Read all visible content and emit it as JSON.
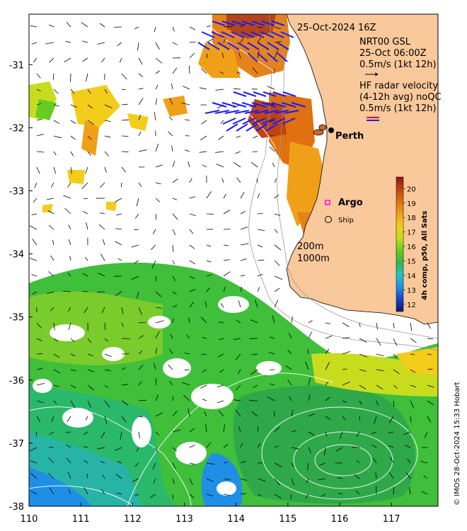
{
  "map": {
    "timestamp": "25-Oct-2024 16Z",
    "gsl": {
      "line1": "NRT00 GSL",
      "line2": "25-Oct 06:00Z",
      "line3": "0.5m/s (1kt 12h)"
    },
    "hf_radar": {
      "line1": "HF radar velocity",
      "line2": "(4-12h avg) noQC",
      "line3": "0.5m/s (1kt 12h)"
    },
    "places": {
      "perth": "Perth",
      "argo": "Argo",
      "ship": "Ship"
    },
    "isobaths": {
      "shallow": "200m",
      "deep": "1000m"
    },
    "credit": "© IMOS 28-Oct-2024 15:33 Hobart",
    "colors": {
      "land": "#f9c89b",
      "coast": "#000000",
      "argo_marker": "#ff00ff",
      "hf_arrow_blue": "#1a1aff",
      "hf_arrow_red": "#ff0000",
      "gsl_arrow": "#000000"
    }
  },
  "axes": {
    "lon_range": [
      110,
      117.9
    ],
    "lat_range": [
      -38,
      -30.2
    ],
    "x_ticks": [
      "110",
      "111",
      "112",
      "113",
      "114",
      "115",
      "116",
      "117"
    ],
    "y_ticks": [
      "-31",
      "-32",
      "-33",
      "-34",
      "-35",
      "-36",
      "-37",
      "-38"
    ]
  },
  "colorbar": {
    "title": "4h comp, p50, All Sats",
    "ticks": [
      "20",
      "19",
      "18",
      "17",
      "16",
      "15",
      "14",
      "13",
      "12"
    ],
    "range": [
      11.5,
      20.8
    ],
    "stops": [
      "#0a1a6e",
      "#1a3fcf",
      "#1f8fe6",
      "#22c3c8",
      "#2fb84a",
      "#66cc22",
      "#c8dc1e",
      "#f2cd1a",
      "#f0a018",
      "#e07010",
      "#c04410",
      "#8b1a0a"
    ]
  }
}
